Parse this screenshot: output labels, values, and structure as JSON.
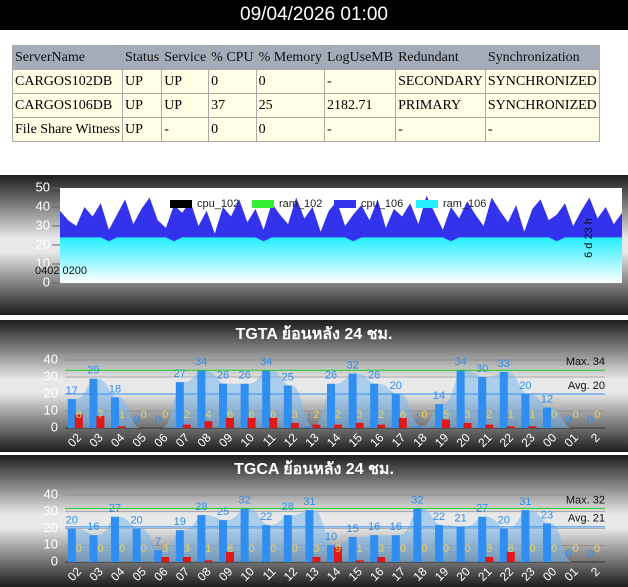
{
  "header": {
    "title": "09/04/2026 01:00"
  },
  "table": {
    "columns": [
      "ServerName",
      "Status",
      "Service",
      "% CPU",
      "% Memory",
      "LogUseMB",
      "Redundant",
      "Synchronization"
    ],
    "rows": [
      [
        "CARGOS102DB",
        "UP",
        "UP",
        "0",
        "0",
        "-",
        "SECONDARY",
        "SYNCHRONIZED"
      ],
      [
        "CARGOS106DB",
        "UP",
        "UP",
        "37",
        "25",
        "2182.71",
        "PRIMARY",
        "SYNCHRONIZED"
      ],
      [
        "File Share Witness",
        "UP",
        "-",
        "0",
        "0",
        "-",
        "-",
        "-"
      ]
    ]
  },
  "chart_data": [
    {
      "type": "area",
      "ylim": [
        0,
        50
      ],
      "yticks": [
        0,
        10,
        20,
        30,
        40,
        50
      ],
      "x_start_label": "0402 0200",
      "x_span_label": "6 d 23 h",
      "series": [
        {
          "name": "cpu_102",
          "color": "#000000",
          "values": [
            0,
            0,
            0,
            0,
            0,
            0,
            0,
            0,
            0,
            0,
            0,
            0,
            0,
            0,
            0,
            0,
            0,
            0,
            0,
            0,
            0,
            0,
            0,
            0,
            0,
            0,
            0,
            0,
            0,
            0,
            0,
            0,
            0,
            0,
            0,
            0,
            0,
            0,
            0,
            0,
            0,
            0,
            0,
            0,
            0,
            0,
            0,
            0,
            0,
            0,
            0,
            0,
            0,
            0,
            0,
            0,
            0,
            0,
            0,
            0,
            0,
            0,
            0,
            0,
            0,
            0,
            0,
            0,
            0,
            0
          ]
        },
        {
          "name": "ram_102",
          "color": "#33ee33",
          "values": [
            0,
            0,
            0,
            0,
            0,
            0,
            0,
            0,
            0,
            0,
            0,
            0,
            0,
            0,
            0,
            0,
            0,
            0,
            0,
            0,
            0,
            0,
            0,
            0,
            0,
            0,
            0,
            0,
            0,
            0,
            0,
            0,
            0,
            0,
            0,
            0,
            0,
            0,
            0,
            0,
            0,
            0,
            0,
            0,
            0,
            0,
            0,
            0,
            0,
            0,
            0,
            0,
            0,
            0,
            0,
            0,
            0,
            0,
            0,
            0,
            0,
            0,
            0,
            0,
            0,
            0,
            0,
            0,
            0,
            0
          ]
        },
        {
          "name": "cpu_106",
          "color": "#3333ee",
          "values": [
            38,
            33,
            30,
            40,
            35,
            42,
            28,
            36,
            44,
            31,
            39,
            45,
            33,
            29,
            41,
            37,
            43,
            30,
            38,
            26,
            40,
            35,
            44,
            32,
            39,
            28,
            42,
            36,
            31,
            45,
            34,
            40,
            27,
            38,
            43,
            30,
            36,
            41,
            33,
            44,
            29,
            39,
            35,
            42,
            31,
            46,
            37,
            28,
            40,
            34,
            43,
            36,
            30,
            45,
            38,
            32,
            41,
            27,
            39,
            44,
            33,
            36,
            42,
            30,
            38,
            45,
            34,
            40,
            31,
            37
          ]
        },
        {
          "name": "ram_106",
          "color": "#22eeff",
          "values": [
            24,
            24,
            24,
            24,
            24,
            24,
            22,
            24,
            24,
            24,
            24,
            24,
            24,
            24,
            22,
            24,
            24,
            24,
            24,
            24,
            24,
            24,
            24,
            24,
            24,
            22,
            24,
            24,
            24,
            24,
            24,
            24,
            24,
            24,
            24,
            24,
            22,
            24,
            24,
            24,
            24,
            24,
            24,
            24,
            24,
            24,
            24,
            24,
            22,
            24,
            24,
            24,
            24,
            24,
            24,
            24,
            24,
            24,
            24,
            24,
            24,
            22,
            24,
            24,
            24,
            24,
            24,
            24,
            24,
            24
          ]
        }
      ]
    },
    {
      "type": "bar",
      "title": "TGTA ย้อนหลัง 24 ชม.",
      "ylim": [
        0,
        40
      ],
      "yticks": [
        0,
        10,
        20,
        30,
        40
      ],
      "categories": [
        "02",
        "03",
        "04",
        "05",
        "06",
        "07",
        "08",
        "09",
        "10",
        "11",
        "12",
        "13",
        "14",
        "15",
        "16",
        "17",
        "18",
        "19",
        "20",
        "21",
        "22",
        "23",
        "00",
        "01",
        "2"
      ],
      "max": {
        "value": 34,
        "label": "Max. 34"
      },
      "avg": {
        "value": 20,
        "label": "Avg. 20"
      },
      "series": [
        {
          "color": "#2f8ef0",
          "values": [
            17,
            29,
            18,
            0,
            0,
            27,
            34,
            26,
            26,
            34,
            25,
            1,
            26,
            32,
            26,
            20,
            1,
            14,
            34,
            30,
            33,
            20,
            12,
            0,
            0
          ]
        },
        {
          "color": "#e01818",
          "values": [
            8,
            7,
            1,
            0,
            0,
            2,
            4,
            6,
            6,
            6,
            3,
            2,
            2,
            3,
            2,
            6,
            0,
            5,
            3,
            2,
            1,
            1,
            0,
            0,
            0
          ]
        }
      ]
    },
    {
      "type": "bar",
      "title": "TGCA ย้อนหลัง 24 ชม.",
      "ylim": [
        0,
        40
      ],
      "yticks": [
        0,
        10,
        20,
        30,
        40
      ],
      "categories": [
        "02",
        "03",
        "04",
        "05",
        "06",
        "07",
        "08",
        "09",
        "10",
        "11",
        "12",
        "13",
        "14",
        "15",
        "16",
        "17",
        "18",
        "19",
        "20",
        "21",
        "22",
        "23",
        "00",
        "01",
        "2"
      ],
      "max": {
        "value": 32,
        "label": "Max. 32"
      },
      "avg": {
        "value": 21,
        "label": "Avg. 21"
      },
      "series": [
        {
          "color": "#2f8ef0",
          "values": [
            20,
            16,
            27,
            20,
            7,
            19,
            28,
            25,
            32,
            22,
            28,
            31,
            10,
            15,
            16,
            16,
            32,
            22,
            21,
            27,
            20,
            31,
            23,
            0,
            0
          ]
        },
        {
          "color": "#e01818",
          "values": [
            0,
            0,
            0,
            0,
            3,
            3,
            1,
            6,
            0,
            0,
            0,
            3,
            9,
            1,
            3,
            0,
            0,
            0,
            0,
            3,
            6,
            0,
            0,
            0,
            0
          ]
        }
      ]
    }
  ]
}
